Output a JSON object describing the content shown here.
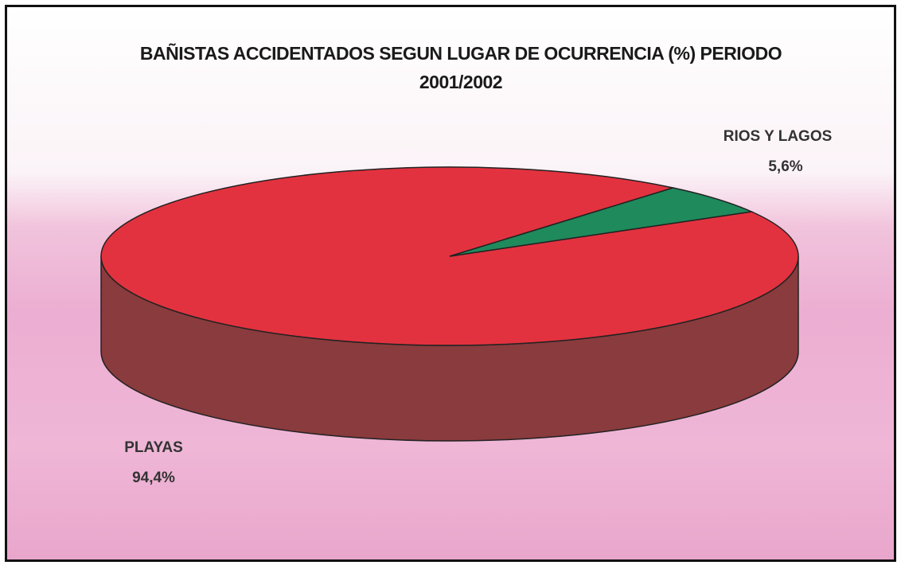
{
  "chart_data": {
    "type": "pie",
    "title": "BAÑISTAS ACCIDENTADOS SEGUN LUGAR DE OCURRENCIA (%) PERIODO 2001/2002",
    "categories": [
      "PLAYAS",
      "RIOS Y LAGOS"
    ],
    "values": [
      94.4,
      5.6
    ],
    "value_labels": [
      "94,4%",
      "5,6%"
    ],
    "colors": [
      "#e3323f",
      "#1f8a5c"
    ]
  }
}
